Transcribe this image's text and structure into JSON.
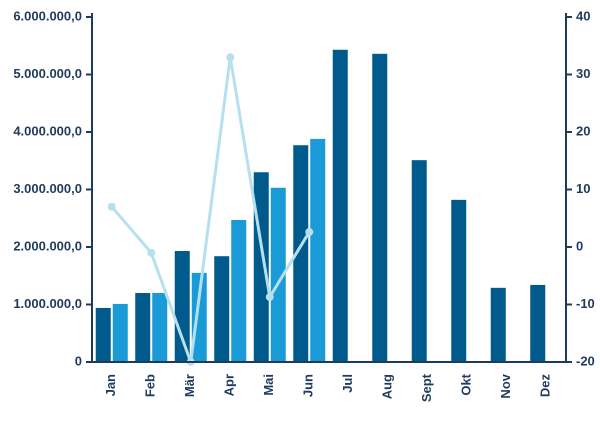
{
  "chart_data": {
    "type": "bar",
    "categories": [
      "Jan",
      "Feb",
      "Mär",
      "Apr",
      "Mai",
      "Jun",
      "Jul",
      "Aug",
      "Sept",
      "Okt",
      "Nov",
      "Dez"
    ],
    "series": [
      {
        "color": "#005a8c",
        "values": [
          940000,
          1200000,
          1930000,
          1840000,
          3300000,
          3770000,
          5430000,
          5360000,
          3510000,
          2820000,
          1290000,
          1340000
        ]
      },
      {
        "color": "#1a9ad6",
        "values": [
          1010000,
          1200000,
          1550000,
          2470000,
          3030000,
          3880000,
          null,
          null,
          null,
          null,
          null,
          null
        ]
      },
      {
        "type": "line",
        "axis": "y2",
        "color": "#b7e0ee",
        "values": [
          7,
          -1,
          -20,
          33,
          -8.7,
          2.6,
          null,
          null,
          null,
          null,
          null,
          null
        ]
      }
    ],
    "ylim": [
      0,
      6000000
    ],
    "yticks": [
      0,
      {
        "value": 1000000,
        "label": "1.000.000,0"
      },
      {
        "value": 2000000,
        "label": "2.000.000,0"
      },
      {
        "value": 3000000,
        "label": "3.000.000,0"
      },
      {
        "value": 4000000,
        "label": "4.000.000,0"
      },
      {
        "value": 5000000,
        "label": "5.000.000,0"
      },
      {
        "value": 6000000,
        "label": "6.000.000,0"
      }
    ],
    "y2lim": [
      -20,
      40
    ],
    "y2ticks": [
      -20,
      -10,
      0,
      10,
      20,
      30,
      40
    ],
    "axis_color": "#1f3b5c"
  }
}
